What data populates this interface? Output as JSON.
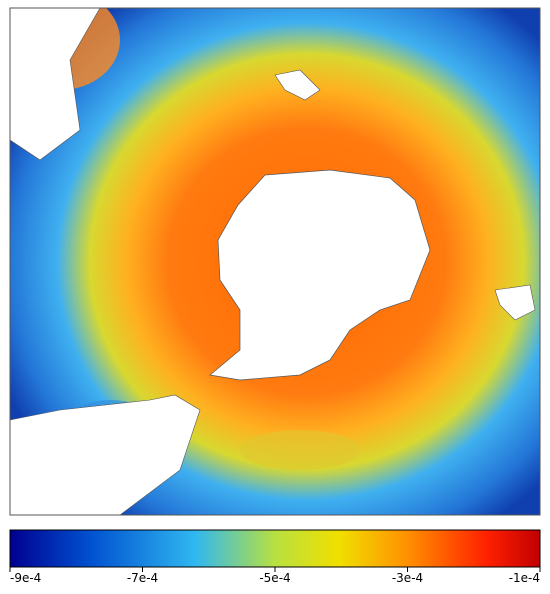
{
  "map": {
    "colorbar": {
      "clim": [
        -0.0009,
        -0.0001
      ],
      "ticks": [
        {
          "value": -0.0009,
          "label": "-9e-4"
        },
        {
          "value": -0.0007,
          "label": "-7e-4"
        },
        {
          "value": -0.0005,
          "label": "-5e-4"
        },
        {
          "value": -0.0003,
          "label": "-3e-4"
        },
        {
          "value": -0.0001,
          "label": "-1e-4"
        }
      ]
    }
  }
}
